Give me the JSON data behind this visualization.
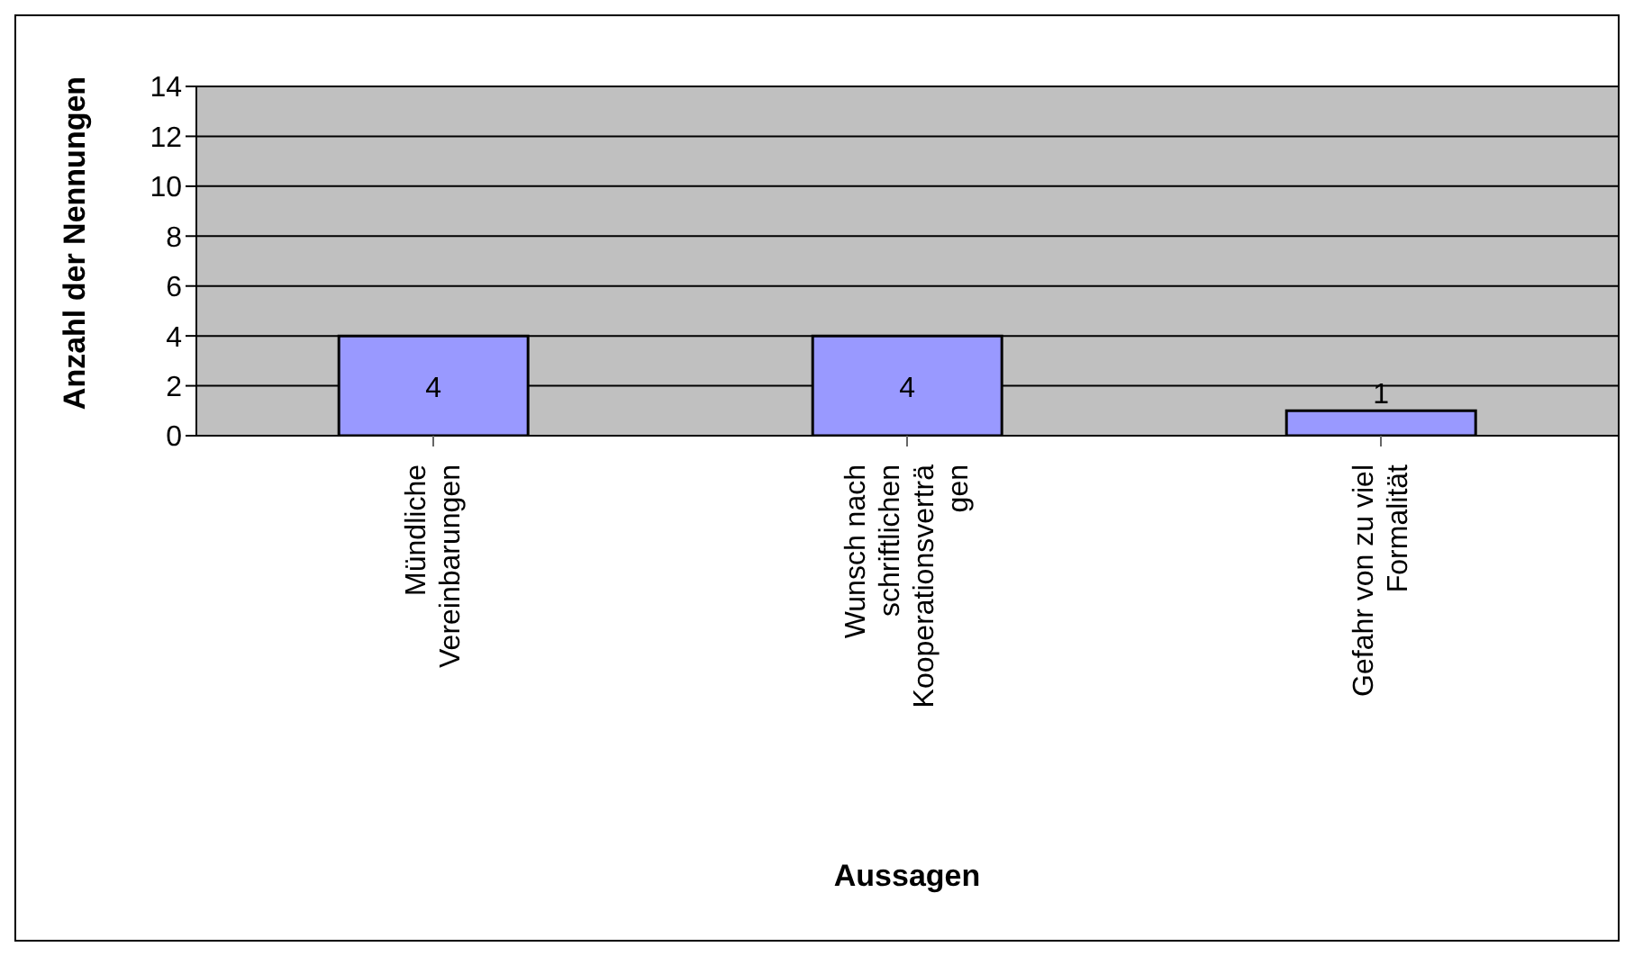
{
  "chart_data": {
    "type": "bar",
    "xlabel": "Aussagen",
    "ylabel": "Anzahl der Nennungen",
    "categories": [
      "Mündliche\nVereinbarungen",
      "Wunsch nach\nschriftlichen\nKooperationsverträ\ngen",
      "Gefahr von zu viel\nFormalität"
    ],
    "values": [
      4,
      4,
      1
    ],
    "color": "#9999ff",
    "ylim": [
      0,
      14
    ],
    "yticks": [
      0,
      2,
      4,
      6,
      8,
      10,
      12,
      14
    ],
    "grid": "y",
    "data_labels": true
  }
}
